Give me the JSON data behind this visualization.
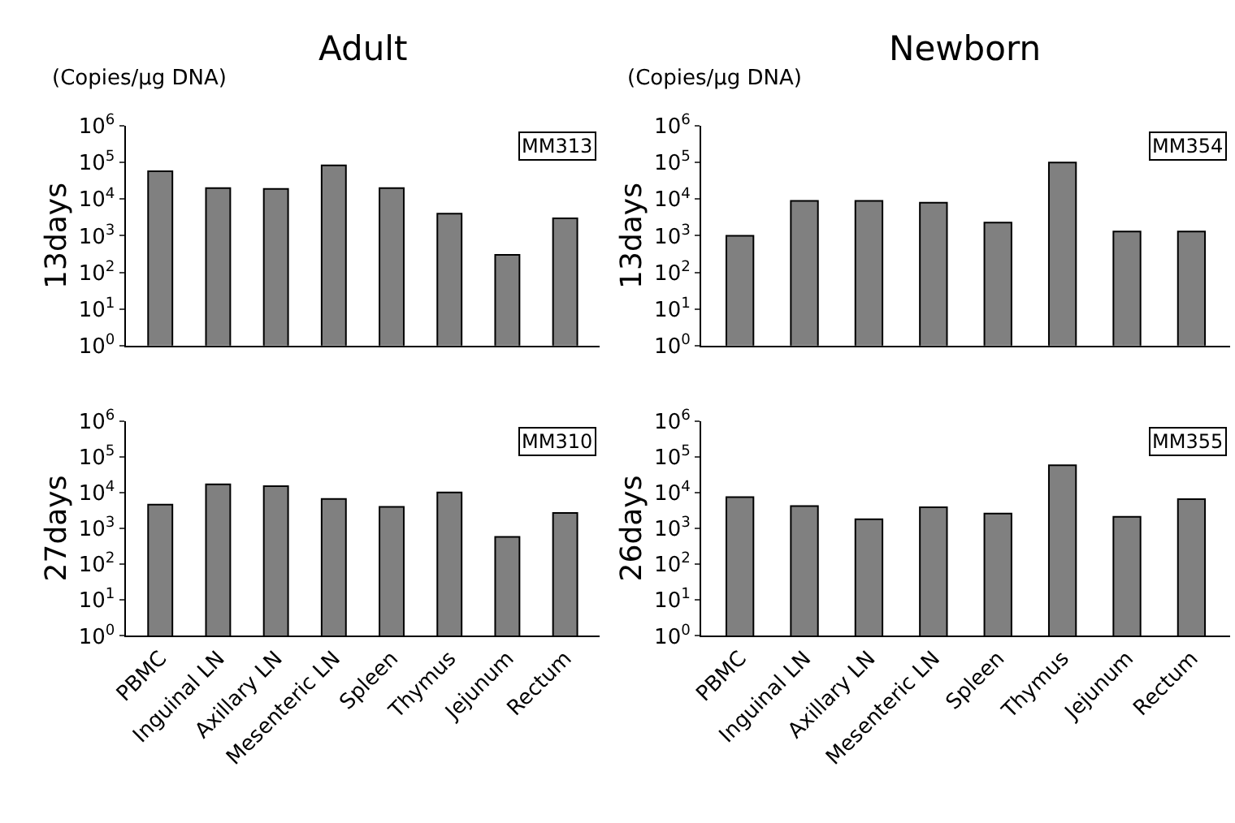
{
  "chart_data": [
    {
      "type": "bar",
      "title": "Adult",
      "subtitle": "(Copies/µg DNA)",
      "ylabel": "13days",
      "categories": [
        null,
        null,
        null,
        null,
        null,
        null,
        null,
        null
      ],
      "values": [
        58000,
        20000,
        19000,
        84000,
        20000,
        4000,
        300,
        3000
      ],
      "color": "#808080",
      "log": true,
      "ylim": [
        1,
        1000000
      ],
      "yticks": [
        {
          "value": 1,
          "label": "10$^{0}$"
        },
        {
          "value": 10,
          "label": "10$^{1}$"
        },
        {
          "value": 100,
          "label": "10$^{2}$"
        },
        {
          "value": 1000,
          "label": "10$^{3}$"
        },
        {
          "value": 10000,
          "label": "10$^{4}$"
        },
        {
          "value": 100000,
          "label": "10$^{5}$"
        },
        {
          "value": 1000000,
          "label": "10$^{6}$"
        }
      ],
      "tick_labels": "y",
      "annotations": [
        "MM313"
      ]
    },
    {
      "type": "bar",
      "title": "Newborn",
      "subtitle": "(Copies/µg DNA)",
      "ylabel": "13days",
      "categories": [
        null,
        null,
        null,
        null,
        null,
        null,
        null,
        null
      ],
      "values": [
        1000,
        9000,
        9000,
        8000,
        2300,
        100000,
        1300,
        1300
      ],
      "color": "#808080",
      "log": true,
      "ylim": [
        1,
        1000000
      ],
      "yticks": [
        {
          "value": 1,
          "label": "10$^{0}$"
        },
        {
          "value": 10,
          "label": "10$^{1}$"
        },
        {
          "value": 100,
          "label": "10$^{2}$"
        },
        {
          "value": 1000,
          "label": "10$^{3}$"
        },
        {
          "value": 10000,
          "label": "10$^{4}$"
        },
        {
          "value": 100000,
          "label": "10$^{5}$"
        },
        {
          "value": 1000000,
          "label": "10$^{6}$"
        }
      ],
      "tick_labels": "y",
      "annotations": [
        "MM354"
      ]
    },
    {
      "type": "bar",
      "ylabel": "27days",
      "categories": [
        "PBMC",
        "Inguinal LN",
        "Axillary LN",
        "Mesenteric LN",
        "Spleen",
        "Thymus",
        "Jejunum",
        "Rectum"
      ],
      "values": [
        4600,
        17000,
        15000,
        6600,
        4000,
        10000,
        580,
        2700
      ],
      "color": "#808080",
      "log": true,
      "ylim": [
        1,
        1000000
      ],
      "yticks": [
        {
          "value": 1,
          "label": "10$^{0}$"
        },
        {
          "value": 10,
          "label": "10$^{1}$"
        },
        {
          "value": 100,
          "label": "10$^{2}$"
        },
        {
          "value": 1000,
          "label": "10$^{3}$"
        },
        {
          "value": 10000,
          "label": "10$^{4}$"
        },
        {
          "value": 100000,
          "label": "10$^{5}$"
        },
        {
          "value": 1000000,
          "label": "10$^{6}$"
        }
      ],
      "annotations": [
        "MM310"
      ]
    },
    {
      "type": "bar",
      "ylabel": "26days",
      "categories": [
        "PBMC",
        "Inguinal LN",
        "Axillary LN",
        "Mesenteric LN",
        "Spleen",
        "Thymus",
        "Jejunum",
        "Rectum"
      ],
      "values": [
        7400,
        4200,
        1800,
        3900,
        2600,
        58000,
        2100,
        6500
      ],
      "color": "#808080",
      "log": true,
      "ylim": [
        1,
        1000000
      ],
      "yticks": [
        {
          "value": 1,
          "label": "10$^{0}$"
        },
        {
          "value": 10,
          "label": "10$^{1}$"
        },
        {
          "value": 100,
          "label": "10$^{2}$"
        },
        {
          "value": 1000,
          "label": "10$^{3}$"
        },
        {
          "value": 10000,
          "label": "10$^{4}$"
        },
        {
          "value": 100000,
          "label": "10$^{5}$"
        },
        {
          "value": 1000000,
          "label": "10$^{6}$"
        }
      ],
      "annotations": [
        "MM355"
      ]
    }
  ]
}
